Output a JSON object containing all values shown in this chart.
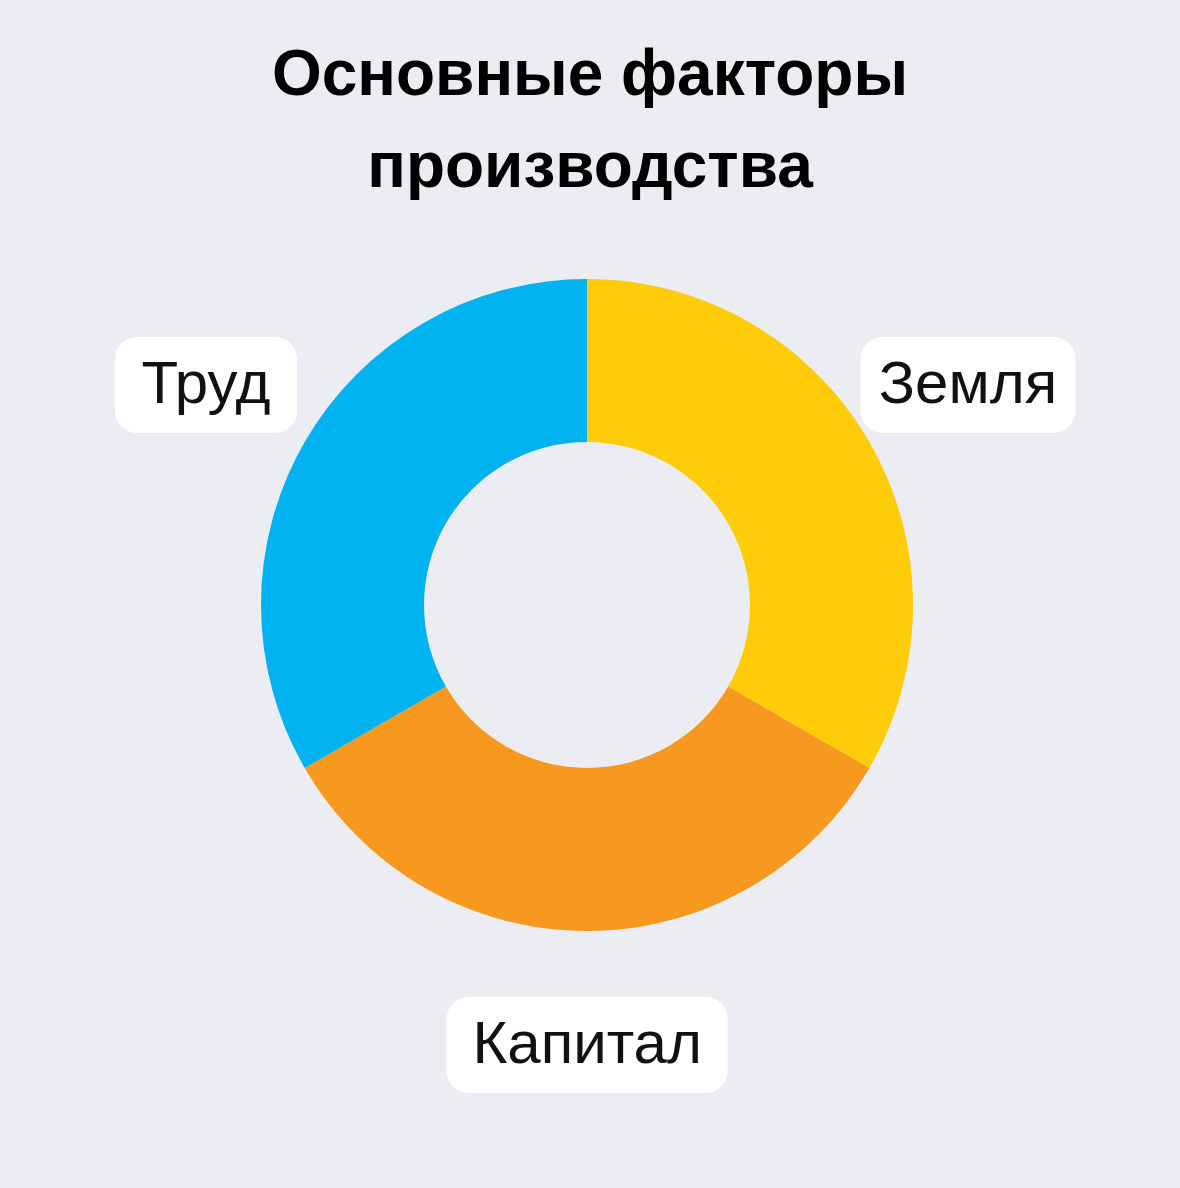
{
  "chart_data": {
    "type": "donut",
    "title": [
      "Основные факторы",
      "производства"
    ],
    "categories": [
      "Земля",
      "Капитал",
      "Труд"
    ],
    "values": [
      33.33,
      33.33,
      33.34
    ],
    "colors": [
      "#fecc09",
      "#f7981f",
      "#00b2ef"
    ]
  }
}
